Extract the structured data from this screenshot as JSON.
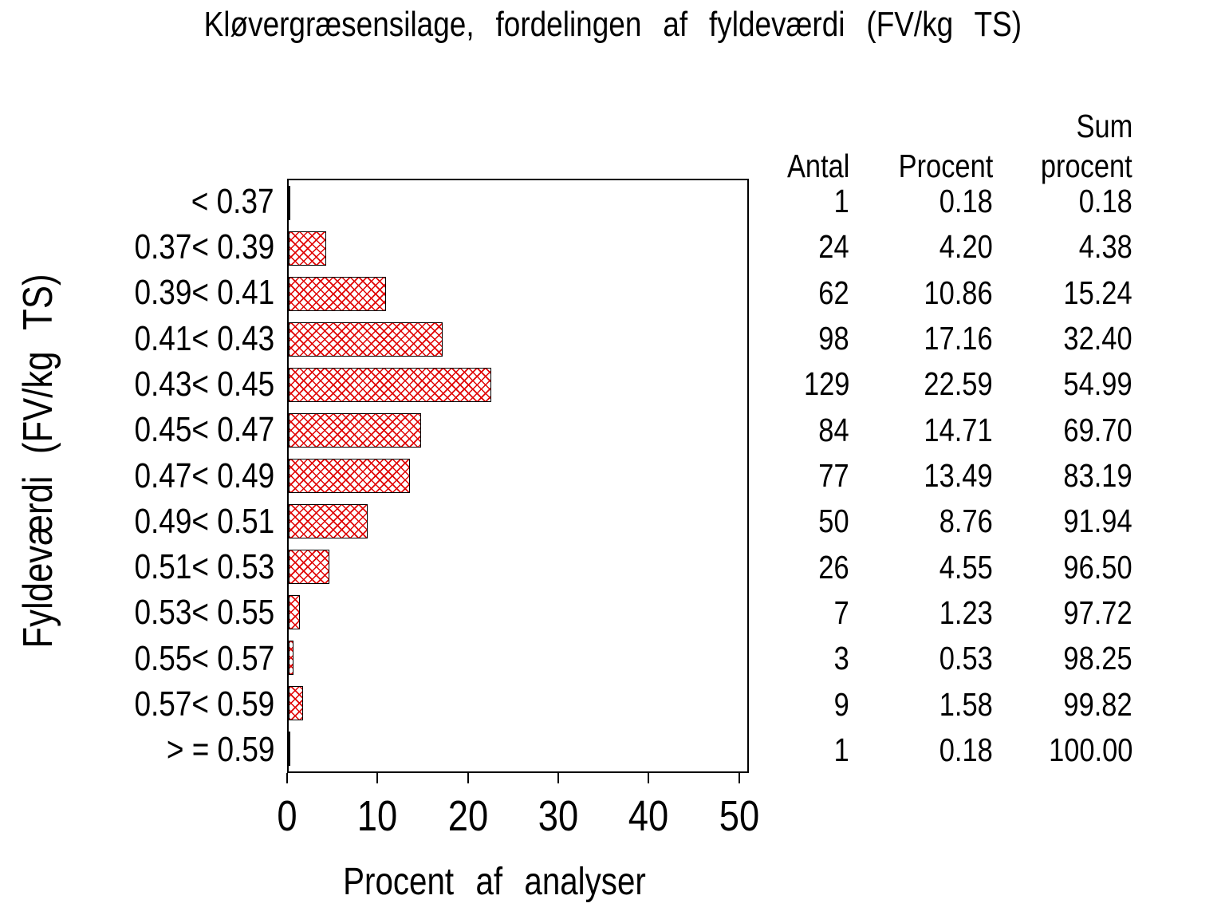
{
  "chart_data": {
    "type": "bar",
    "orientation": "horizontal",
    "title": "Kløvergræsensilage, fordelingen af fyldeværdi (FV/kg TS)",
    "xlabel": "Procent af analyser",
    "ylabel": "Fyldeværdi (FV/kg TS)",
    "categories": [
      "< 0.37",
      "0.37< 0.39",
      "0.39< 0.41",
      "0.41< 0.43",
      "0.43< 0.45",
      "0.45< 0.47",
      "0.47< 0.49",
      "0.49< 0.51",
      "0.51< 0.53",
      "0.53< 0.55",
      "0.55< 0.57",
      "0.57< 0.59",
      "> = 0.59"
    ],
    "series": [
      {
        "name": "Antal",
        "values": [
          1,
          24,
          62,
          98,
          129,
          84,
          77,
          50,
          26,
          7,
          3,
          9,
          1
        ]
      },
      {
        "name": "Procent",
        "values": [
          0.18,
          4.2,
          10.86,
          17.16,
          22.59,
          14.71,
          13.49,
          8.76,
          4.55,
          1.23,
          0.53,
          1.58,
          0.18
        ]
      },
      {
        "name": "Sum procent",
        "values": [
          0.18,
          4.38,
          15.24,
          32.4,
          54.99,
          69.7,
          83.19,
          91.94,
          96.5,
          97.72,
          98.25,
          99.82,
          100.0
        ]
      }
    ],
    "bar_value_series": "Procent",
    "xticks": [
      0,
      10,
      20,
      30,
      40,
      50
    ],
    "xlim": [
      0,
      51.1
    ],
    "grid": false,
    "legend": "none",
    "bar_fill_color": "#e00000",
    "bar_pattern": "crosshatch",
    "bar_border_color": "#000000",
    "frame_color": "#000000",
    "text_color": "#000000",
    "background_color": "#ffffff"
  },
  "table": {
    "headers": {
      "antal": "Antal",
      "procent": "Procent",
      "sum_line1": "Sum",
      "sum_line2": "procent"
    },
    "rows": [
      [
        "1",
        "0.18",
        "0.18"
      ],
      [
        "24",
        "4.20",
        "4.38"
      ],
      [
        "62",
        "10.86",
        "15.24"
      ],
      [
        "98",
        "17.16",
        "32.40"
      ],
      [
        "129",
        "22.59",
        "54.99"
      ],
      [
        "84",
        "14.71",
        "69.70"
      ],
      [
        "77",
        "13.49",
        "83.19"
      ],
      [
        "50",
        "8.76",
        "91.94"
      ],
      [
        "26",
        "4.55",
        "96.50"
      ],
      [
        "7",
        "1.23",
        "97.72"
      ],
      [
        "3",
        "0.53",
        "98.25"
      ],
      [
        "9",
        "1.58",
        "99.82"
      ],
      [
        "1",
        "0.18",
        "100.00"
      ]
    ]
  }
}
